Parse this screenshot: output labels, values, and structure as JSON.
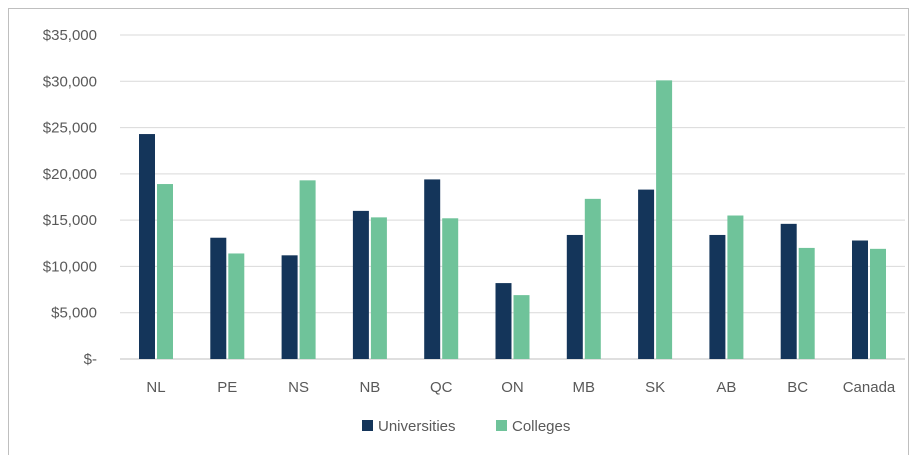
{
  "chart_data": {
    "type": "bar",
    "categories": [
      "NL",
      "PE",
      "NS",
      "NB",
      "QC",
      "ON",
      "MB",
      "SK",
      "AB",
      "BC",
      "Canada"
    ],
    "series": [
      {
        "name": "Universities",
        "color": "#14355a",
        "values": [
          24300,
          13100,
          11200,
          16000,
          19400,
          8200,
          13400,
          18300,
          13400,
          14600,
          12800
        ]
      },
      {
        "name": "Colleges",
        "color": "#6fc39a",
        "values": [
          18900,
          11400,
          19300,
          15300,
          15200,
          6900,
          17300,
          30100,
          15500,
          12000,
          11900
        ]
      }
    ],
    "y_ticks": [
      0,
      5000,
      10000,
      15000,
      20000,
      25000,
      30000,
      35000
    ],
    "y_tick_labels": [
      "$-",
      "$5,000",
      "$10,000",
      "$15,000",
      "$20,000",
      "$25,000",
      "$30,000",
      "$35,000"
    ],
    "ylim": [
      0,
      35000
    ],
    "grid": true,
    "legend_position": "bottom",
    "title": "",
    "xlabel": "",
    "ylabel": ""
  }
}
